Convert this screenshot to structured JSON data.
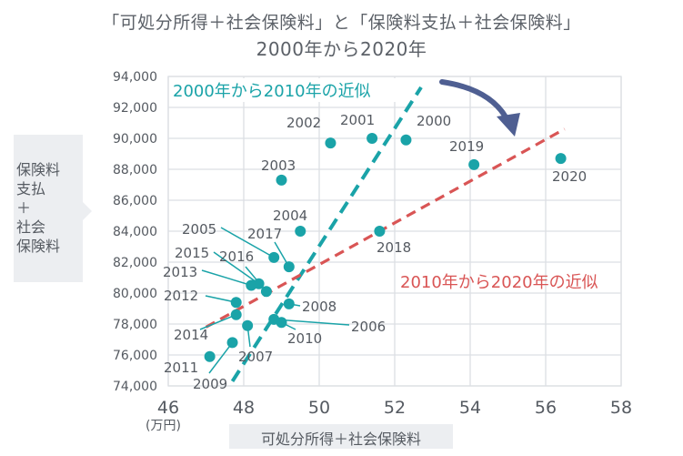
{
  "chart_data": {
    "type": "scatter",
    "title_line1": "「可処分所得＋社会保険料」と「保険料支払＋社会保険料」",
    "title_line2": "2000年から2020年",
    "xlabel": "可処分所得＋社会保険料",
    "x_unit": "(万円)",
    "ylabel": "保険料\n支払\n＋\n社会\n保険料",
    "xlim": [
      46,
      58
    ],
    "ylim": [
      74000,
      94000
    ],
    "x_ticks": [
      "46",
      "48",
      "50",
      "52",
      "54",
      "56",
      "58"
    ],
    "y_ticks": [
      "74,000",
      "76,000",
      "78,000",
      "80,000",
      "82,000",
      "84,000",
      "86,000",
      "88,000",
      "90,000",
      "92,000",
      "94,000"
    ],
    "points": [
      {
        "year": "2000",
        "x": 52.3,
        "y": 89900
      },
      {
        "year": "2001",
        "x": 51.4,
        "y": 90000
      },
      {
        "year": "2002",
        "x": 50.3,
        "y": 89700
      },
      {
        "year": "2003",
        "x": 49.0,
        "y": 87300
      },
      {
        "year": "2004",
        "x": 49.5,
        "y": 84000
      },
      {
        "year": "2005",
        "x": 48.8,
        "y": 82300
      },
      {
        "year": "2006",
        "x": 48.8,
        "y": 78300
      },
      {
        "year": "2007",
        "x": 48.1,
        "y": 77900
      },
      {
        "year": "2008",
        "x": 49.2,
        "y": 79300
      },
      {
        "year": "2009",
        "x": 47.7,
        "y": 76800
      },
      {
        "year": "2010",
        "x": 49.0,
        "y": 78100
      },
      {
        "year": "2011",
        "x": 47.1,
        "y": 75900
      },
      {
        "year": "2012",
        "x": 47.8,
        "y": 79400
      },
      {
        "year": "2013",
        "x": 48.2,
        "y": 80500
      },
      {
        "year": "2014",
        "x": 47.8,
        "y": 78600
      },
      {
        "year": "2015",
        "x": 48.4,
        "y": 80600
      },
      {
        "year": "2016",
        "x": 48.6,
        "y": 80100
      },
      {
        "year": "2017",
        "x": 49.2,
        "y": 81700
      },
      {
        "year": "2018",
        "x": 51.6,
        "y": 84000
      },
      {
        "year": "2019",
        "x": 54.1,
        "y": 88300
      },
      {
        "year": "2020",
        "x": 56.4,
        "y": 88700
      }
    ],
    "trendlines": [
      {
        "name": "2000年から2010年の近似",
        "color": "#1aa3a8",
        "from": [
          47.7,
          74300
        ],
        "to": [
          52.7,
          93300
        ]
      },
      {
        "name": "2010年から2020年の近似",
        "color": "#d95555",
        "from": [
          47.0,
          77800
        ],
        "to": [
          56.5,
          90600
        ]
      }
    ],
    "colors": {
      "point": "#1aa3a8",
      "teal": "#1aa3a8",
      "red": "#d95555",
      "arrow": "#4f5f92",
      "grid": "#dcdfe3"
    }
  }
}
